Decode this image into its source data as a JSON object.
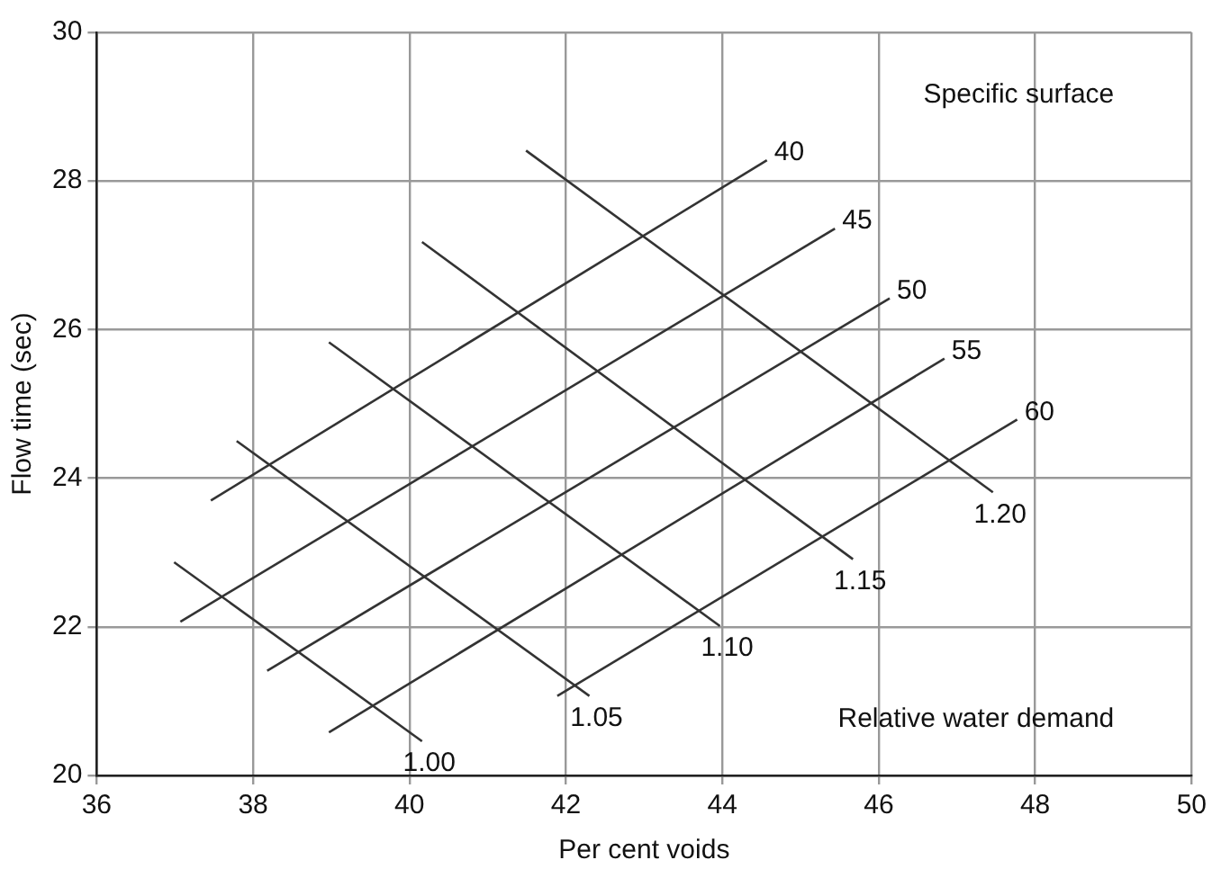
{
  "chart_data": {
    "type": "line",
    "xlabel": "Per cent voids",
    "ylabel": "Flow time (sec)",
    "xlim": [
      36,
      50
    ],
    "xticks": [
      36,
      38,
      40,
      42,
      44,
      46,
      48,
      50
    ],
    "ylim": [
      20,
      30
    ],
    "yticks": [
      20,
      22,
      24,
      26,
      28,
      30
    ],
    "grid": true,
    "legend": false,
    "marker": "none",
    "line_style": "solid",
    "annotations": [
      "Specific surface",
      "Relative water demand"
    ],
    "series": [
      {
        "name": "40",
        "color": "#333333",
        "x": [
          37.46,
          44.57
        ],
        "values": [
          23.7,
          28.28
        ]
      },
      {
        "name": "45",
        "color": "#333333",
        "x": [
          37.07,
          45.44
        ],
        "values": [
          22.07,
          27.36
        ]
      },
      {
        "name": "50",
        "color": "#333333",
        "x": [
          38.18,
          46.14
        ],
        "values": [
          21.41,
          26.42
        ]
      },
      {
        "name": "55",
        "color": "#333333",
        "x": [
          38.97,
          46.84
        ],
        "values": [
          20.58,
          25.61
        ]
      },
      {
        "name": "60",
        "color": "#333333",
        "x": [
          41.89,
          47.77
        ],
        "values": [
          21.07,
          24.79
        ]
      },
      {
        "name": "1.00",
        "color": "#333333",
        "x": [
          36.99,
          40.16
        ],
        "values": [
          22.87,
          20.46
        ]
      },
      {
        "name": "1.05",
        "color": "#333333",
        "x": [
          37.79,
          42.3
        ],
        "values": [
          24.5,
          21.07
        ]
      },
      {
        "name": "1.10",
        "color": "#333333",
        "x": [
          38.97,
          43.97
        ],
        "values": [
          25.83,
          22.01
        ]
      },
      {
        "name": "1.15",
        "color": "#333333",
        "x": [
          40.16,
          45.67
        ],
        "values": [
          27.18,
          22.91
        ]
      },
      {
        "name": "1.20",
        "color": "#333333",
        "x": [
          41.49,
          47.46
        ],
        "values": [
          28.41,
          23.81
        ]
      }
    ]
  }
}
